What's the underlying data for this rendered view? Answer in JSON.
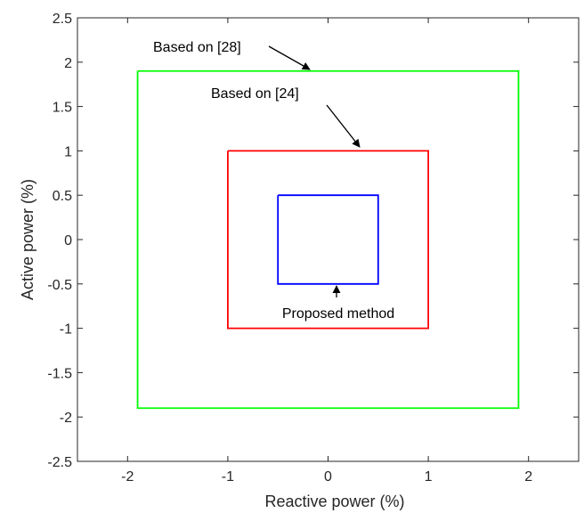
{
  "chart_data": {
    "type": "line",
    "xlabel": "Reactive power (%)",
    "ylabel": "Active power (%)",
    "xlim": [
      -2.5,
      2.5
    ],
    "ylim": [
      -2.5,
      2.5
    ],
    "x_ticks": [
      -2,
      -1,
      0,
      1,
      2
    ],
    "x_tick_labels": [
      "-2",
      "-1",
      "0",
      "1",
      "2"
    ],
    "y_ticks": [
      2.5,
      2,
      1.5,
      1,
      0.5,
      0,
      -0.5,
      -1,
      -1.5,
      -2,
      -2.5
    ],
    "y_tick_labels": [
      "2.5",
      "2",
      "1.5",
      "1",
      "0.5",
      "0",
      "-0.5",
      "-1",
      "-1.5",
      "-2",
      "-2.5"
    ],
    "grid": false,
    "series": [
      {
        "color": "#00ff00",
        "x": [
          -1.9,
          1.9,
          1.9,
          -1.9,
          -1.9
        ],
        "y": [
          1.9,
          1.9,
          -1.9,
          -1.9,
          1.9
        ]
      },
      {
        "color": "#ff0000",
        "x": [
          -1.0,
          1.0,
          1.0,
          -1.0,
          -1.0
        ],
        "y": [
          1.0,
          1.0,
          -1.0,
          -1.0,
          1.0
        ]
      },
      {
        "color": "#0000ff",
        "x": [
          -0.5,
          0.5,
          0.5,
          -0.5,
          -0.5
        ],
        "y": [
          0.5,
          0.5,
          -0.5,
          -0.5,
          0.5
        ]
      }
    ],
    "annotations": [
      {
        "text": "Based on [28]",
        "point_to": [
          -0.25,
          1.9
        ]
      },
      {
        "text": "Based on [24]",
        "point_to": [
          0.25,
          1.0
        ]
      },
      {
        "text": "Proposed method",
        "point_to": [
          0.0,
          -0.5
        ]
      }
    ]
  }
}
